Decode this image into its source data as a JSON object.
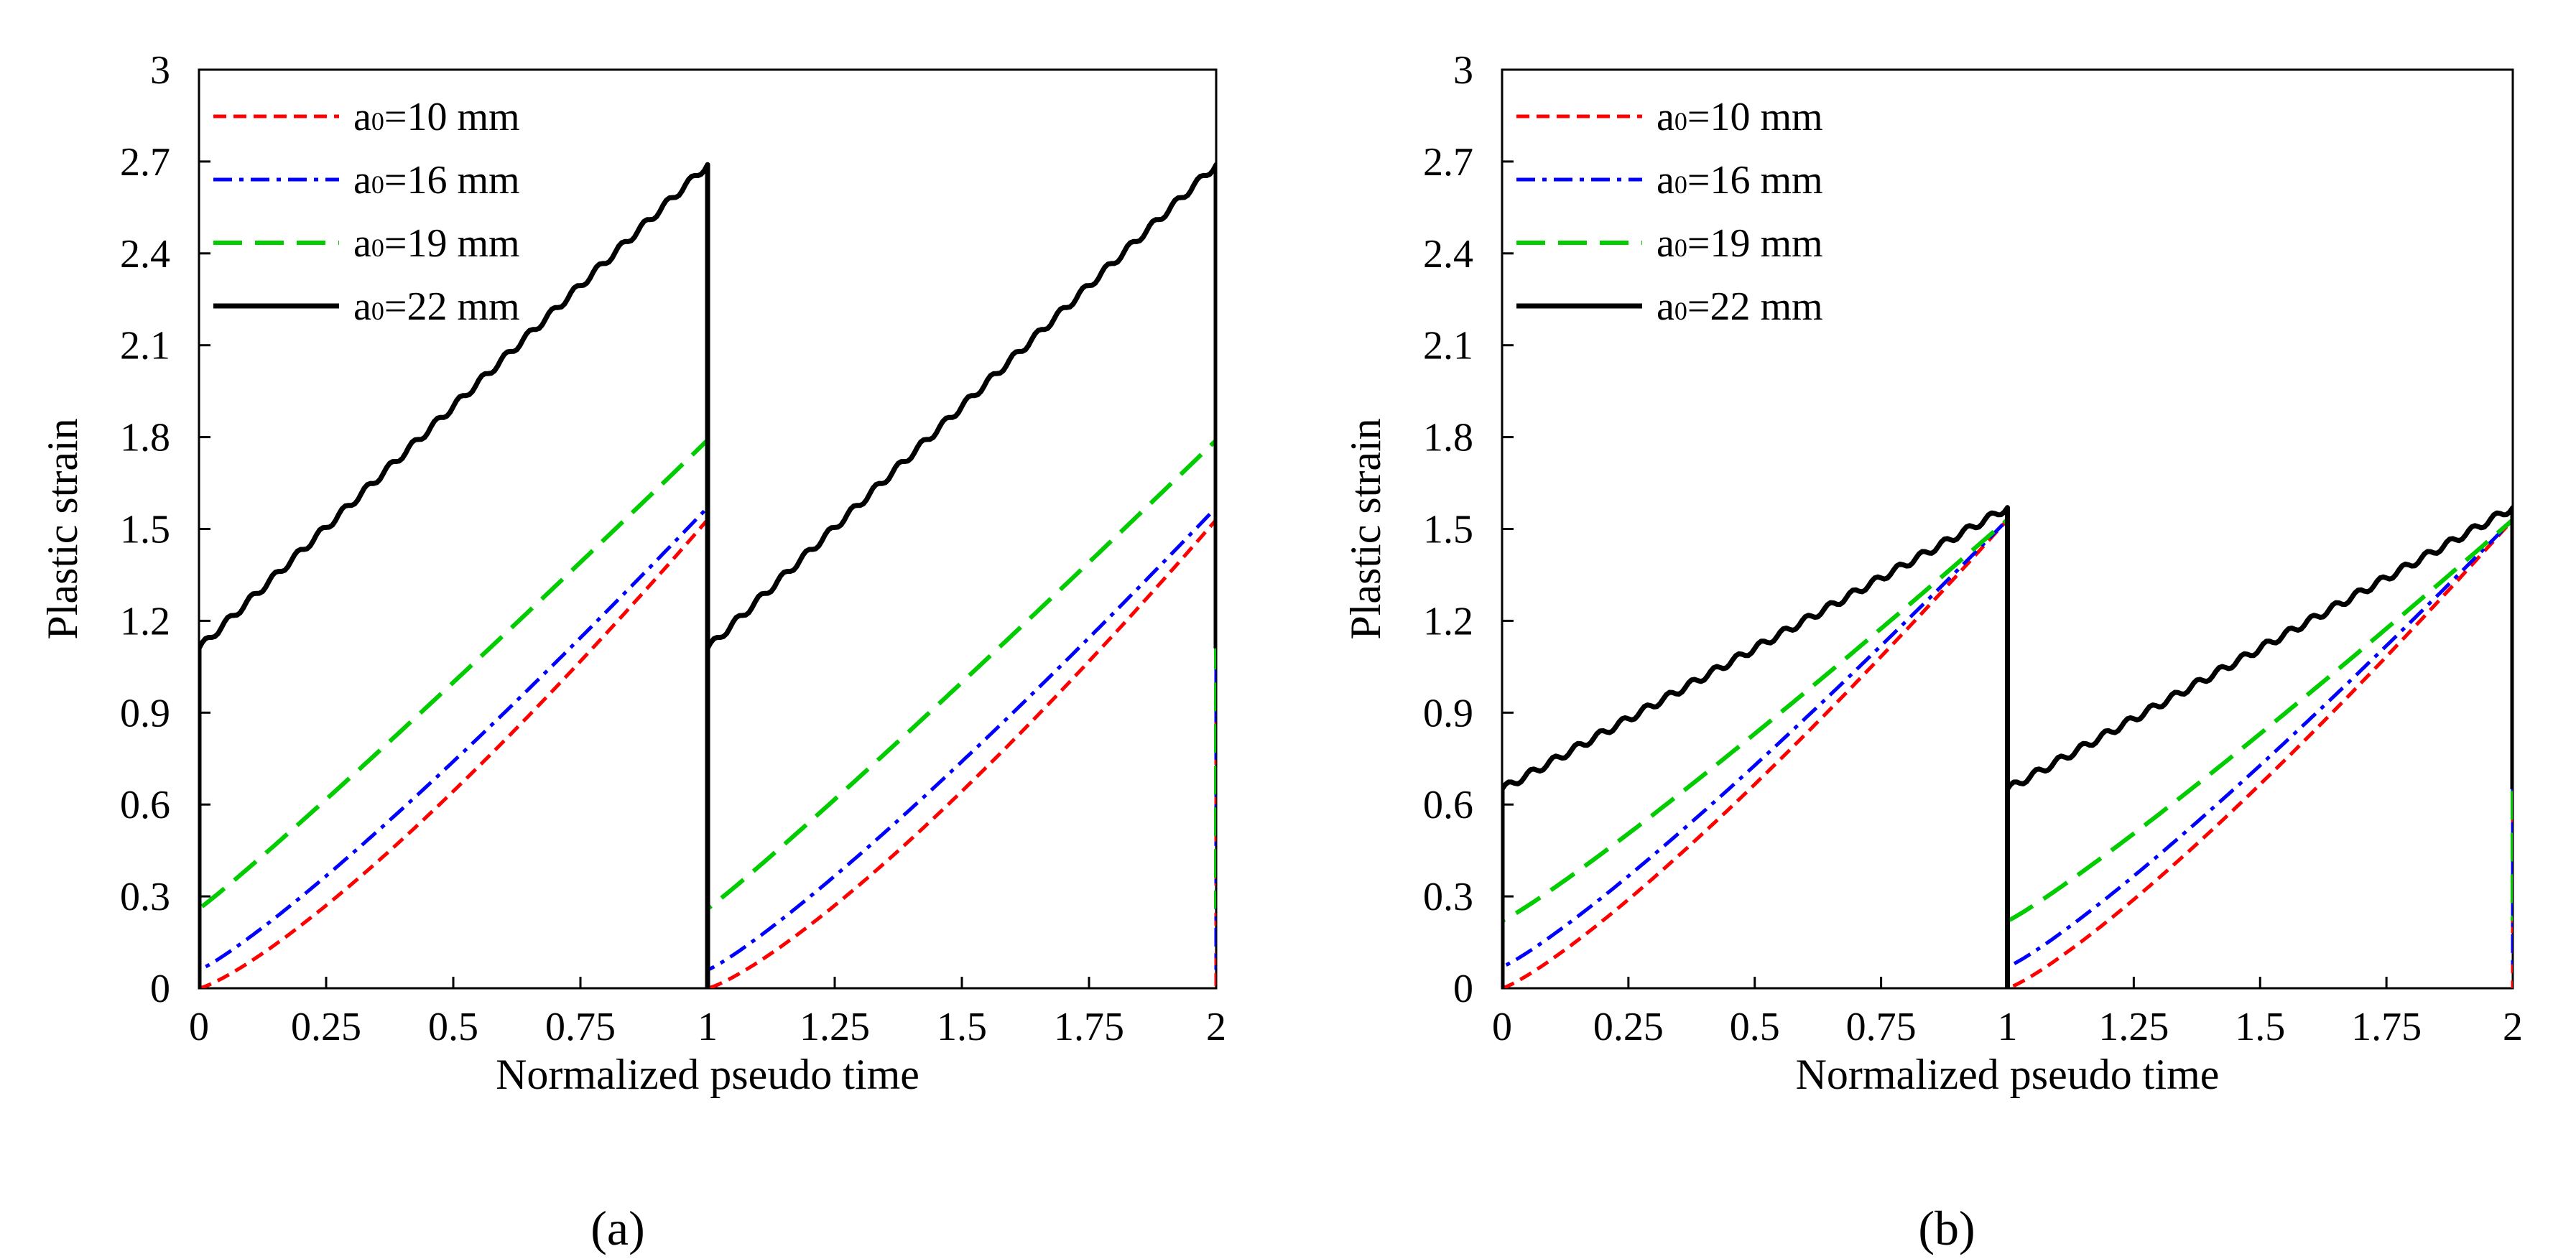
{
  "figure": {
    "panel_labels": [
      "(a)",
      "(b)"
    ],
    "colors": {
      "a10": "#ff0000",
      "a16": "#0000ff",
      "a19": "#00cc00",
      "a22": "#000000"
    }
  },
  "chart_data": [
    {
      "id": "a",
      "type": "line",
      "panel_label": "(a)",
      "xlabel": "Normalized pseudo time",
      "ylabel": "Plastic strain",
      "xlim": [
        0,
        2
      ],
      "ylim": [
        0,
        3
      ],
      "xticks": [
        "0",
        "0.25",
        "0.5",
        "0.75",
        "1",
        "1.25",
        "1.5",
        "1.75",
        "2"
      ],
      "yticks": [
        "0",
        "0.3",
        "0.6",
        "0.9",
        "1.2",
        "1.5",
        "1.8",
        "2.1",
        "2.4",
        "2.7",
        "3"
      ],
      "legend_position": "top-left",
      "series": [
        {
          "name": "a₀=10 mm",
          "label_main": "a",
          "label_sub": "0",
          "label_rest": "=10 mm",
          "color": "#ff0000",
          "dash": "short-dash",
          "start": 0.0,
          "end": 1.53,
          "exponent": 1.25,
          "wiggle": 0
        },
        {
          "name": "a₀=16 mm",
          "label_main": "a",
          "label_sub": "0",
          "label_rest": "=16 mm",
          "color": "#0000ff",
          "dash": "dash-dot",
          "start": 0.06,
          "end": 1.57,
          "exponent": 1.15,
          "wiggle": 0
        },
        {
          "name": "a₀=19 mm",
          "label_main": "a",
          "label_sub": "0",
          "label_rest": "=19 mm",
          "color": "#00cc00",
          "dash": "long-dash",
          "start": 0.26,
          "end": 1.79,
          "exponent": 1.05,
          "wiggle": 0
        },
        {
          "name": "a₀=22 mm",
          "label_main": "a",
          "label_sub": "0",
          "label_rest": "=22 mm",
          "color": "#000000",
          "dash": "solid",
          "start": 1.11,
          "end": 2.69,
          "exponent": 1.0,
          "wiggle": 0.012
        }
      ]
    },
    {
      "id": "b",
      "type": "line",
      "panel_label": "(b)",
      "xlabel": "Normalized pseudo time",
      "ylabel": "Plastic strain",
      "xlim": [
        0,
        2
      ],
      "ylim": [
        0,
        3
      ],
      "xticks": [
        "0",
        "0.25",
        "0.5",
        "0.75",
        "1",
        "1.25",
        "1.5",
        "1.75",
        "2"
      ],
      "yticks": [
        "0",
        "0.3",
        "0.6",
        "0.9",
        "1.2",
        "1.5",
        "1.8",
        "2.1",
        "2.4",
        "2.7",
        "3"
      ],
      "legend_position": "top-left",
      "series": [
        {
          "name": "a₀=10 mm",
          "label_main": "a",
          "label_sub": "0",
          "label_rest": "=10 mm",
          "color": "#ff0000",
          "dash": "short-dash",
          "start": 0.0,
          "end": 1.53,
          "exponent": 1.2,
          "wiggle": 0
        },
        {
          "name": "a₀=16 mm",
          "label_main": "a",
          "label_sub": "0",
          "label_rest": "=16 mm",
          "color": "#0000ff",
          "dash": "dash-dot",
          "start": 0.07,
          "end": 1.53,
          "exponent": 1.15,
          "wiggle": 0
        },
        {
          "name": "a₀=19 mm",
          "label_main": "a",
          "label_sub": "0",
          "label_rest": "=19 mm",
          "color": "#00cc00",
          "dash": "long-dash",
          "start": 0.22,
          "end": 1.53,
          "exponent": 1.1,
          "wiggle": 0
        },
        {
          "name": "a₀=22 mm",
          "label_main": "a",
          "label_sub": "0",
          "label_rest": "=22 mm",
          "color": "#000000",
          "dash": "solid",
          "start": 0.65,
          "end": 1.57,
          "exponent": 1.0,
          "wiggle": 0.012
        }
      ]
    }
  ]
}
